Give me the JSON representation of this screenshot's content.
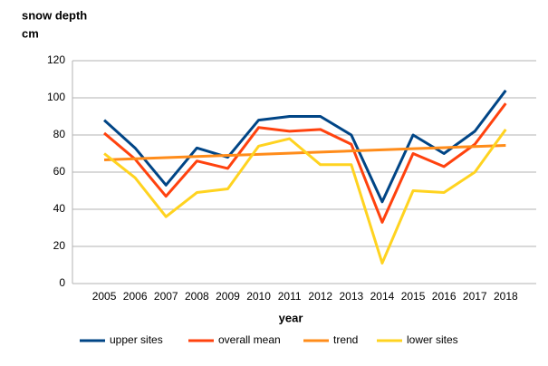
{
  "chart_data": {
    "type": "line",
    "ylabel_lines": [
      "snow depth",
      "cm"
    ],
    "xlabel": "year",
    "categories": [
      "2005",
      "2006",
      "2007",
      "2008",
      "2009",
      "2010",
      "2011",
      "2012",
      "2013",
      "2014",
      "2015",
      "2016",
      "2017",
      "2018"
    ],
    "series": [
      {
        "name": "upper sites",
        "color": "#004586",
        "values": [
          88,
          73,
          53,
          73,
          68,
          88,
          90,
          90,
          80,
          44,
          80,
          70,
          82,
          104
        ]
      },
      {
        "name": "overall mean",
        "color": "#ff420e",
        "values": [
          81,
          67,
          47,
          66,
          62,
          84,
          82,
          83,
          75,
          33,
          70,
          63,
          75,
          97
        ]
      },
      {
        "name": "trend",
        "color": "#ff8c1a",
        "values": [
          66.6,
          67.2,
          67.8,
          68.4,
          69.0,
          69.6,
          70.2,
          70.8,
          71.4,
          72.0,
          72.6,
          73.2,
          73.8,
          74.4
        ]
      },
      {
        "name": "lower sites",
        "color": "#ffd320",
        "values": [
          70,
          57,
          36,
          49,
          51,
          74,
          78,
          64,
          64,
          11,
          50,
          49,
          60,
          83
        ]
      }
    ],
    "ylim": [
      0,
      120
    ],
    "yticks": [
      0,
      20,
      40,
      60,
      80,
      100,
      120
    ],
    "grid": true,
    "legend": "bottom"
  }
}
